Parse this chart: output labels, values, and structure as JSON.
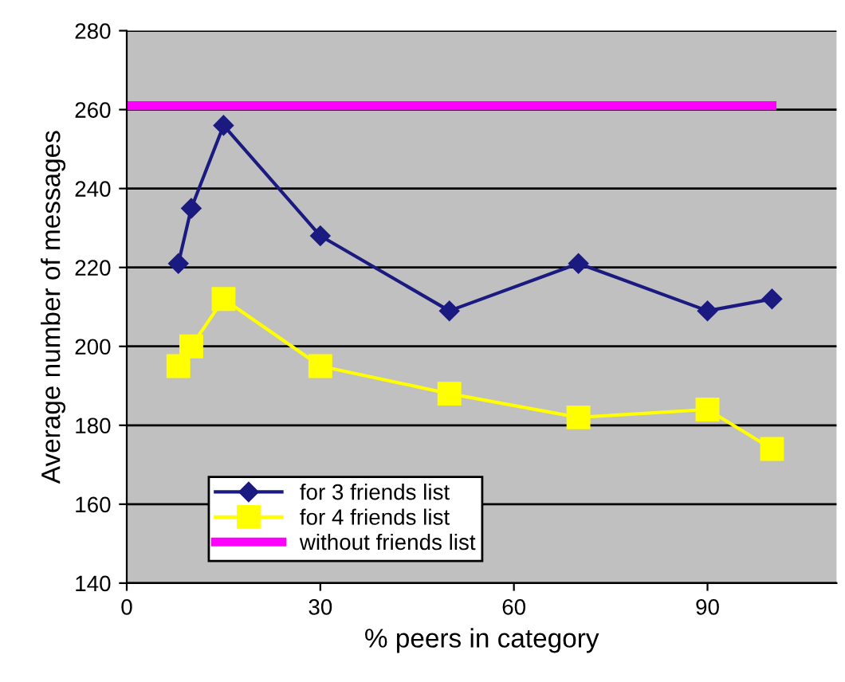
{
  "chart_data": {
    "type": "line",
    "xlabel": "% peers in category",
    "ylabel": "Average number of messages",
    "xlim": [
      0,
      110
    ],
    "xticks": [
      0,
      30,
      60,
      90
    ],
    "ylim": [
      140,
      280
    ],
    "yticks": [
      140,
      160,
      180,
      200,
      220,
      240,
      260,
      280
    ],
    "grid": "y",
    "legend": "bottom left",
    "series": [
      {
        "name": "for 3 friends list",
        "color": "#1a1a80",
        "marker": "diamond",
        "x": [
          8,
          10,
          15,
          30,
          50,
          70,
          90,
          100
        ],
        "values": [
          221,
          235,
          256,
          228,
          209,
          221,
          209,
          212
        ]
      },
      {
        "name": "for 4 friends list",
        "color": "#ffff00",
        "marker": "square",
        "x": [
          8,
          10,
          15,
          30,
          50,
          70,
          90,
          100
        ],
        "values": [
          195,
          200,
          212,
          195,
          188,
          182,
          184,
          174
        ]
      },
      {
        "name": "without friends list",
        "color": "#ff00ff",
        "marker": "none",
        "x": [
          0,
          100
        ],
        "values": [
          261,
          261
        ]
      }
    ]
  }
}
